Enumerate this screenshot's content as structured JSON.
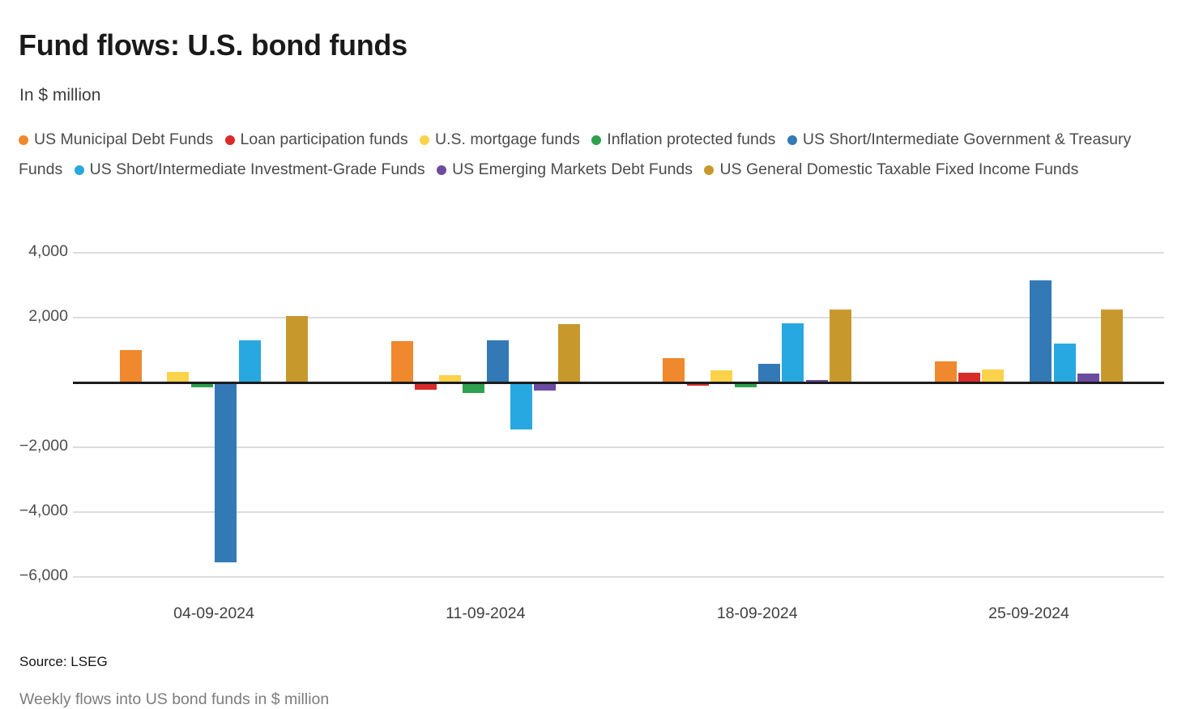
{
  "header": {
    "title": "Fund flows: U.S. bond funds",
    "subtitle": "In $ million"
  },
  "legend": {
    "items": [
      {
        "label": "US Municipal Debt Funds",
        "color": "#F0882D"
      },
      {
        "label": "Loan participation funds",
        "color": "#D92B29"
      },
      {
        "label": "U.S. mortgage funds",
        "color": "#FCD24B"
      },
      {
        "label": "Inflation protected funds",
        "color": "#2EA04E"
      },
      {
        "label": "US Short/Intermediate Government & Treasury Funds",
        "color": "#3379B6"
      },
      {
        "label": "US Short/Intermediate Investment-Grade Funds",
        "color": "#27A8E0"
      },
      {
        "label": "US Emerging Markets Debt Funds",
        "color": "#6C4BA0"
      },
      {
        "label": "US General Domestic Taxable Fixed Income Funds",
        "color": "#C7992D"
      }
    ]
  },
  "chart_data": {
    "type": "bar",
    "title": "Fund flows: U.S. bond funds",
    "units": "In $ million",
    "categories": [
      "04-09-2024",
      "11-09-2024",
      "18-09-2024",
      "25-09-2024"
    ],
    "series": [
      {
        "name": "US Municipal Debt Funds",
        "color": "#F0882D",
        "values": [
          1000,
          1280,
          740,
          640
        ]
      },
      {
        "name": "Loan participation funds",
        "color": "#D92B29",
        "values": [
          0,
          -220,
          -110,
          300
        ]
      },
      {
        "name": "U.S. mortgage funds",
        "color": "#FCD24B",
        "values": [
          320,
          220,
          370,
          400
        ]
      },
      {
        "name": "Inflation protected funds",
        "color": "#2EA04E",
        "values": [
          -140,
          -320,
          -160,
          0
        ]
      },
      {
        "name": "US Short/Intermediate Government & Treasury Funds",
        "color": "#3379B6",
        "values": [
          -5550,
          1300,
          570,
          3150
        ]
      },
      {
        "name": "US Short/Intermediate Investment-Grade Funds",
        "color": "#27A8E0",
        "values": [
          1300,
          -1460,
          1830,
          1200
        ]
      },
      {
        "name": "US Emerging Markets Debt Funds",
        "color": "#6C4BA0",
        "values": [
          -60,
          -240,
          80,
          270
        ]
      },
      {
        "name": "US General Domestic Taxable Fixed Income Funds",
        "color": "#C7992D",
        "values": [
          2050,
          1800,
          2240,
          2250
        ]
      }
    ],
    "y_axis": {
      "ticks": [
        {
          "value": 4000,
          "label": "4,000"
        },
        {
          "value": 2000,
          "label": "2,000"
        },
        {
          "value": -2000,
          "label": "−2,000"
        },
        {
          "value": -4000,
          "label": "−4,000"
        },
        {
          "value": -6000,
          "label": "−6,000"
        }
      ],
      "range": [
        -6500,
        4500
      ],
      "baseline": 0
    },
    "grid": true,
    "legend_position": "top",
    "xlabel": "",
    "ylabel": ""
  },
  "footer": {
    "source": "Source: LSEG",
    "caption": "Weekly flows into US bond funds in $ million"
  }
}
